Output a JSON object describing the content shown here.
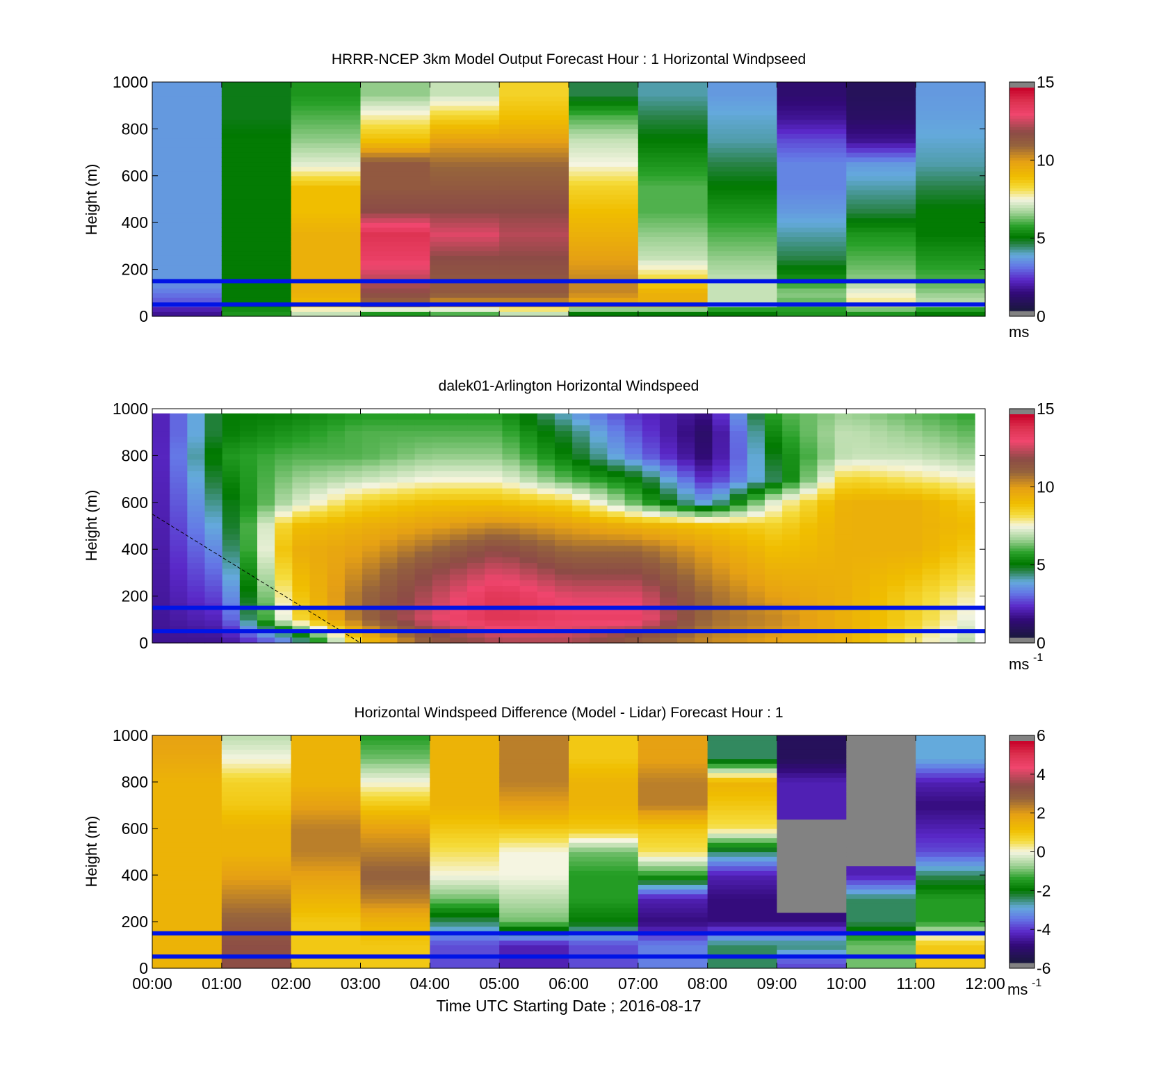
{
  "chart_data": [
    {
      "type": "heatmap",
      "title": "HRRR-NCEP 3km Model Output   Forecast Hour : 1 Horizontal Windpseed",
      "ylabel": "Height (m)",
      "xlabel": "",
      "ylim": [
        0,
        1000
      ],
      "yticks": [
        0,
        200,
        400,
        600,
        800,
        1000
      ],
      "xlim": [
        0,
        12
      ],
      "x_tick_labels_shown": false,
      "colorbar": {
        "min": 0,
        "max": 15,
        "ticks": [
          0,
          5,
          10,
          15
        ],
        "unit_main": "ms",
        "unit_sup": ""
      },
      "reference_lines_m": [
        150,
        50
      ],
      "grid": "time x height, 12 hourly columns",
      "profile_heights_m": [
        20,
        50,
        100,
        150,
        250,
        350,
        450,
        550,
        650,
        750,
        850,
        950
      ],
      "columns": [
        [
          1.5,
          2.5,
          3.0,
          3.5,
          3.5,
          3.5,
          3.5,
          3.5,
          3.5,
          3.5,
          3.5,
          3.5
        ],
        [
          5.5,
          5.0,
          5.0,
          5.0,
          5.0,
          5.0,
          5.0,
          5.0,
          5.0,
          5.0,
          4.8,
          4.8
        ],
        [
          7.0,
          9.0,
          9.5,
          9.5,
          9.5,
          9.5,
          9.0,
          9.0,
          7.3,
          6.5,
          6.0,
          5.5
        ],
        [
          5.5,
          11.0,
          12.0,
          12.5,
          13.5,
          14.0,
          12.0,
          11.5,
          11.5,
          9.0,
          7.8,
          6.5
        ],
        [
          6.0,
          10.0,
          11.5,
          11.5,
          12.0,
          13.0,
          12.0,
          11.5,
          11.0,
          10.0,
          8.5,
          7.0
        ],
        [
          7.0,
          10.0,
          11.5,
          11.5,
          12.0,
          12.5,
          12.0,
          11.5,
          11.0,
          10.0,
          9.0,
          8.5
        ],
        [
          5.0,
          9.5,
          10.5,
          10.5,
          10.0,
          9.5,
          9.0,
          8.5,
          7.5,
          7.0,
          6.0,
          4.5
        ],
        [
          5.0,
          9.5,
          9.5,
          8.5,
          7.0,
          6.5,
          6.0,
          6.0,
          5.5,
          5.0,
          4.5,
          4.0
        ],
        [
          5.0,
          7.0,
          7.0,
          7.0,
          6.5,
          6.0,
          5.5,
          5.0,
          4.5,
          4.0,
          3.8,
          3.5
        ],
        [
          5.5,
          6.0,
          6.5,
          5.5,
          4.5,
          4.0,
          3.5,
          3.2,
          3.2,
          2.5,
          1.5,
          1.0
        ],
        [
          5.5,
          8.0,
          7.5,
          6.5,
          6.0,
          5.5,
          4.5,
          4.0,
          3.5,
          1.5,
          0.8,
          0.6
        ],
        [
          5.0,
          7.0,
          6.5,
          6.0,
          5.5,
          5.0,
          5.0,
          4.5,
          4.0,
          3.8,
          3.6,
          3.5
        ]
      ]
    },
    {
      "type": "heatmap",
      "title": "dalek01-Arlington  Horizontal Windspeed",
      "ylabel": "Height (m)",
      "xlabel": "",
      "ylim": [
        0,
        1000
      ],
      "yticks": [
        0,
        200,
        400,
        600,
        800,
        1000
      ],
      "xlim": [
        0,
        12
      ],
      "x_tick_labels_shown": false,
      "colorbar": {
        "min": 0,
        "max": 15,
        "ticks": [
          0,
          5,
          10,
          15
        ],
        "unit_main": "ms",
        "unit_sup": "-1"
      },
      "reference_lines_m": [
        150,
        50
      ],
      "dashed_line": {
        "from": [
          0.0,
          550
        ],
        "to": [
          3.0,
          0
        ]
      },
      "grid": "time x height, scans every ~15 min",
      "anchor_times_h": [
        0,
        1,
        2,
        3,
        4,
        5,
        6,
        7,
        8,
        9,
        10,
        11,
        12
      ],
      "anchor_heights_m": [
        20,
        100,
        200,
        300,
        400,
        500,
        600,
        700,
        800,
        900,
        1000
      ],
      "anchor_values": [
        [
          1.5,
          1.5,
          1.5,
          1.5,
          1.5,
          1.5,
          1.5,
          1.5,
          1.5,
          1.5,
          1.5
        ],
        [
          1.5,
          2.0,
          2.5,
          3.0,
          3.5,
          4.0,
          4.5,
          5.0,
          5.5,
          5.0,
          5.0
        ],
        [
          3.5,
          8.0,
          8.5,
          9.0,
          9.5,
          9.0,
          7.0,
          6.5,
          6.0,
          5.5,
          5.0
        ],
        [
          9.0,
          11.0,
          11.0,
          10.5,
          10.0,
          9.5,
          8.5,
          7.0,
          6.0,
          6.0,
          5.5
        ],
        [
          11.5,
          13.0,
          12.5,
          12.0,
          11.0,
          10.0,
          9.0,
          7.5,
          6.5,
          6.0,
          5.5
        ],
        [
          12.5,
          14.0,
          14.0,
          13.0,
          12.0,
          10.5,
          9.0,
          7.5,
          6.5,
          6.0,
          5.5
        ],
        [
          12.5,
          13.5,
          13.0,
          12.0,
          11.0,
          10.0,
          8.5,
          6.0,
          5.0,
          4.5,
          3.5
        ],
        [
          11.5,
          13.5,
          13.0,
          12.0,
          11.0,
          9.5,
          6.0,
          5.0,
          3.0,
          2.5,
          2.0
        ],
        [
          10.5,
          11.0,
          11.0,
          10.5,
          10.0,
          9.0,
          3.5,
          2.0,
          1.0,
          0.8,
          1.5
        ],
        [
          10.0,
          10.5,
          10.0,
          9.5,
          9.0,
          8.5,
          7.5,
          4.5,
          5.0,
          5.5,
          6.0
        ],
        [
          9.5,
          9.5,
          9.5,
          9.5,
          9.5,
          9.5,
          9.5,
          8.5,
          7.0,
          7.0,
          6.5
        ],
        [
          8.0,
          8.5,
          8.5,
          9.0,
          9.5,
          9.5,
          9.5,
          8.0,
          7.0,
          6.5,
          6.0
        ],
        [
          6.5,
          7.0,
          7.5,
          8.0,
          8.5,
          9.0,
          8.5,
          7.5,
          6.5,
          6.0,
          5.5
        ]
      ]
    },
    {
      "type": "heatmap",
      "title": "Horizontal Windspeed Difference (Model - Lidar) Forecast Hour : 1",
      "ylabel": "Height (m)",
      "xlabel": "Time UTC  Starting Date ; 2016-08-17",
      "ylim": [
        0,
        1000
      ],
      "yticks": [
        0,
        200,
        400,
        600,
        800,
        1000
      ],
      "xlim": [
        0,
        12
      ],
      "x_tick_labels": [
        "00:00",
        "01:00",
        "02:00",
        "03:00",
        "04:00",
        "05:00",
        "06:00",
        "07:00",
        "08:00",
        "09:00",
        "10:00",
        "11:00",
        "12:00"
      ],
      "colorbar": {
        "min": -6,
        "max": 6,
        "ticks": [
          -6,
          -4,
          -2,
          0,
          2,
          4,
          6
        ],
        "unit_main": "ms",
        "unit_sup": "-1"
      },
      "reference_lines_m": [
        150,
        50
      ],
      "grid": "time x height, 12 hourly columns",
      "profile_heights_m": [
        20,
        100,
        200,
        300,
        400,
        500,
        600,
        700,
        800,
        900,
        1000
      ],
      "columns": [
        [
          1.5,
          1.5,
          1.5,
          1.5,
          1.5,
          1.5,
          1.5,
          1.5,
          1.5,
          1.8,
          2.0
        ],
        [
          3.5,
          3.5,
          3.0,
          2.5,
          2.0,
          1.5,
          1.5,
          1.0,
          0.8,
          0.0,
          -0.5
        ],
        [
          1.0,
          1.0,
          1.0,
          1.5,
          2.0,
          2.5,
          2.5,
          2.0,
          1.5,
          1.5,
          1.5
        ],
        [
          1.0,
          1.0,
          1.5,
          2.5,
          3.0,
          2.5,
          2.0,
          1.0,
          0.0,
          -1.0,
          -1.5
        ],
        [
          -4.0,
          -4.0,
          -2.5,
          -1.0,
          0.0,
          0.5,
          1.0,
          1.5,
          1.5,
          1.5,
          1.5
        ],
        [
          -4.5,
          -4.5,
          -1.0,
          -0.5,
          0.0,
          0.0,
          1.0,
          2.0,
          2.5,
          2.5,
          2.5
        ],
        [
          -4.0,
          -4.0,
          -2.0,
          -1.5,
          -1.5,
          -1.0,
          1.0,
          1.5,
          1.5,
          1.0,
          1.0
        ],
        [
          -3.5,
          -3.5,
          -5.0,
          -4.5,
          -1.5,
          0.5,
          1.0,
          2.5,
          2.5,
          2.0,
          2.0
        ],
        [
          -2.5,
          -2.5,
          -5.0,
          -5.0,
          -4.5,
          -2.5,
          0.5,
          1.0,
          1.5,
          -2.5,
          -2.5
        ],
        [
          -4.0,
          -2.5,
          -5.0,
          "na",
          "na",
          "na",
          "na",
          -4.5,
          -4.5,
          -5.5,
          -5.5
        ],
        [
          -1.0,
          -1.0,
          -2.5,
          -2.5,
          -4.5,
          "na",
          "na",
          "na",
          "na",
          "na",
          "na"
        ],
        [
          1.0,
          1.0,
          -1.5,
          -1.5,
          -2.5,
          -4.0,
          -4.5,
          -5.0,
          -4.5,
          -3.0,
          -3.0
        ]
      ]
    }
  ]
}
